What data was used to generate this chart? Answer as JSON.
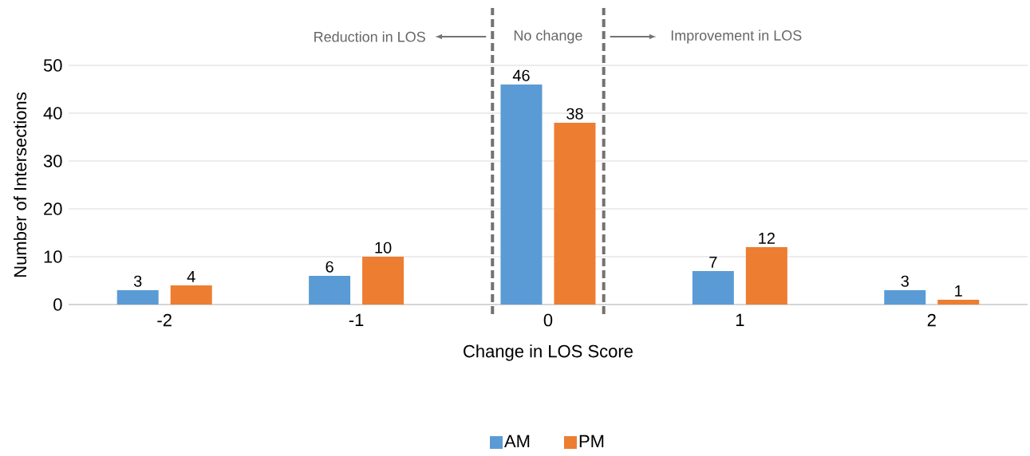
{
  "chart_data": {
    "type": "bar",
    "xlabel": "Change in LOS Score",
    "ylabel": "Number of Intersections",
    "x": [
      -2,
      -1,
      0,
      1,
      2
    ],
    "xlim": [
      -2.5,
      2.5
    ],
    "xticks": [
      -2,
      -1,
      0,
      1,
      2
    ],
    "ylim": [
      0,
      50
    ],
    "yticks": [
      0,
      10,
      20,
      30,
      40,
      50
    ],
    "series": [
      {
        "name": "AM",
        "color": "#5b9bd5",
        "values": [
          3,
          6,
          46,
          7,
          3
        ]
      },
      {
        "name": "PM",
        "color": "#ed7d31",
        "values": [
          4,
          10,
          38,
          12,
          1
        ]
      }
    ],
    "data_labels": true,
    "grid": "y",
    "legend": "bottom",
    "ref_lines": [
      {
        "axis": "x",
        "value": -0.29,
        "color": "#767171",
        "line_style": "dashed"
      },
      {
        "axis": "x",
        "value": 0.29,
        "color": "#767171",
        "line_style": "dashed"
      }
    ],
    "annotations": [
      "Reduction in LOS",
      "No change",
      "Improvement in LOS"
    ]
  }
}
